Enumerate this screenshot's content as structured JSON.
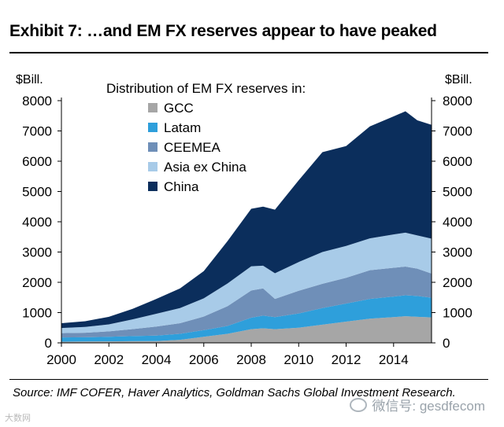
{
  "page": {
    "title": "Exhibit 7: …and EM FX reserves appear to have peaked",
    "source": "Source: IMF COFER, Haver Analytics, Goldman Sachs Global Investment Research.",
    "watermark": "微信号: gesdfecom",
    "corner_mark": "大数网"
  },
  "chart_data": {
    "type": "area",
    "stacked": true,
    "title": "Exhibit 7: …and EM FX reserves appear to have peaked",
    "legend_title": "Distribution of EM FX reserves in:",
    "legend_position": "top-left",
    "ylabel_left": "$Bill.",
    "ylabel_right": "$Bill.",
    "xlabel": "",
    "ylim": [
      0,
      8000
    ],
    "xlim": [
      2000,
      2015.6
    ],
    "yticks": [
      0,
      1000,
      2000,
      3000,
      4000,
      5000,
      6000,
      7000,
      8000
    ],
    "yticks_right": [
      0,
      1000,
      2000,
      3000,
      4000,
      5000,
      6000,
      7000,
      8000
    ],
    "xticks": [
      2000,
      2002,
      2004,
      2006,
      2008,
      2010,
      2012,
      2014
    ],
    "grid": false,
    "x": [
      2000,
      2001,
      2002,
      2003,
      2004,
      2005,
      2006,
      2007,
      2008,
      2008.5,
      2009,
      2010,
      2011,
      2012,
      2013,
      2014,
      2014.5,
      2015,
      2015.6
    ],
    "series": [
      {
        "name": "GCC",
        "color": "#a6a6a6",
        "values": [
          40,
          45,
          50,
          55,
          60,
          100,
          200,
          300,
          450,
          480,
          450,
          500,
          600,
          700,
          800,
          850,
          880,
          860,
          840
        ]
      },
      {
        "name": "Latam",
        "color": "#2e9fdb",
        "values": [
          140,
          140,
          150,
          170,
          180,
          200,
          220,
          260,
          380,
          420,
          400,
          470,
          550,
          600,
          650,
          680,
          690,
          690,
          650
        ]
      },
      {
        "name": "CEEMEA",
        "color": "#6f8fb8",
        "values": [
          140,
          150,
          180,
          230,
          300,
          350,
          450,
          650,
          900,
          900,
          600,
          750,
          800,
          850,
          950,
          950,
          950,
          900,
          800
        ]
      },
      {
        "name": "Asia ex China",
        "color": "#a8cbe8",
        "values": [
          170,
          190,
          230,
          320,
          420,
          500,
          600,
          750,
          800,
          750,
          850,
          950,
          1050,
          1050,
          1050,
          1100,
          1120,
          1100,
          1150
        ]
      },
      {
        "name": "China",
        "color": "#0b2e5c",
        "values": [
          160,
          190,
          250,
          350,
          490,
          650,
          900,
          1400,
          1900,
          1950,
          2100,
          2700,
          3300,
          3300,
          3700,
          3900,
          4010,
          3800,
          3760
        ]
      }
    ]
  }
}
